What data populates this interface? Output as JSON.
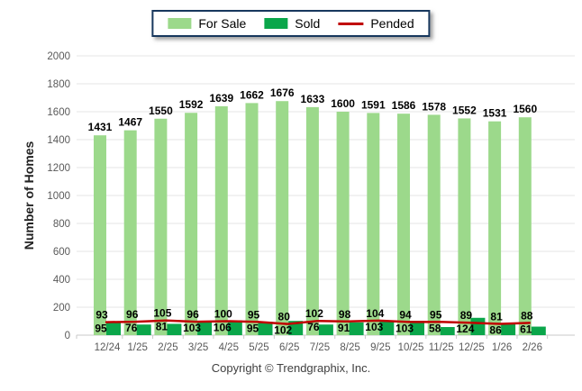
{
  "legend": {
    "items": [
      {
        "label": "For Sale",
        "color": "#9cd98b",
        "type": "box"
      },
      {
        "label": "Sold",
        "color": "#0aa64a",
        "type": "box"
      },
      {
        "label": "Pended",
        "color": "#c00000",
        "type": "line"
      }
    ]
  },
  "chart_data": {
    "type": "bar",
    "title": "",
    "xlabel": "",
    "ylabel": "Number of Homes",
    "ylim": [
      0,
      2000
    ],
    "ytick_step": 200,
    "grid": "horizontal",
    "legend_position": "top-center",
    "value_labels": true,
    "categories": [
      "12/24",
      "1/25",
      "2/25",
      "3/25",
      "4/25",
      "5/25",
      "6/25",
      "7/25",
      "8/25",
      "9/25",
      "10/25",
      "11/25",
      "12/25",
      "1/26",
      "2/26"
    ],
    "series": [
      {
        "name": "For Sale",
        "type": "bar",
        "color": "#9cd98b",
        "values": [
          1431,
          1467,
          1550,
          1592,
          1639,
          1662,
          1676,
          1633,
          1600,
          1591,
          1586,
          1578,
          1552,
          1531,
          1560
        ]
      },
      {
        "name": "Sold",
        "type": "bar",
        "color": "#0aa64a",
        "values": [
          95,
          76,
          81,
          103,
          106,
          95,
          102,
          76,
          91,
          103,
          103,
          58,
          124,
          86,
          61
        ]
      },
      {
        "name": "Pended",
        "type": "line",
        "color": "#c00000",
        "values": [
          93,
          96,
          105,
          96,
          100,
          95,
          80,
          102,
          98,
          104,
          94,
          95,
          89,
          81,
          88
        ]
      }
    ],
    "colors": {
      "grid": "#e6e6e6",
      "axis": "#c9c9c9",
      "tick_text": "#595959",
      "value_text": "#000000"
    }
  },
  "footer": {
    "copyright": "Copyright © Trendgraphix, Inc."
  }
}
